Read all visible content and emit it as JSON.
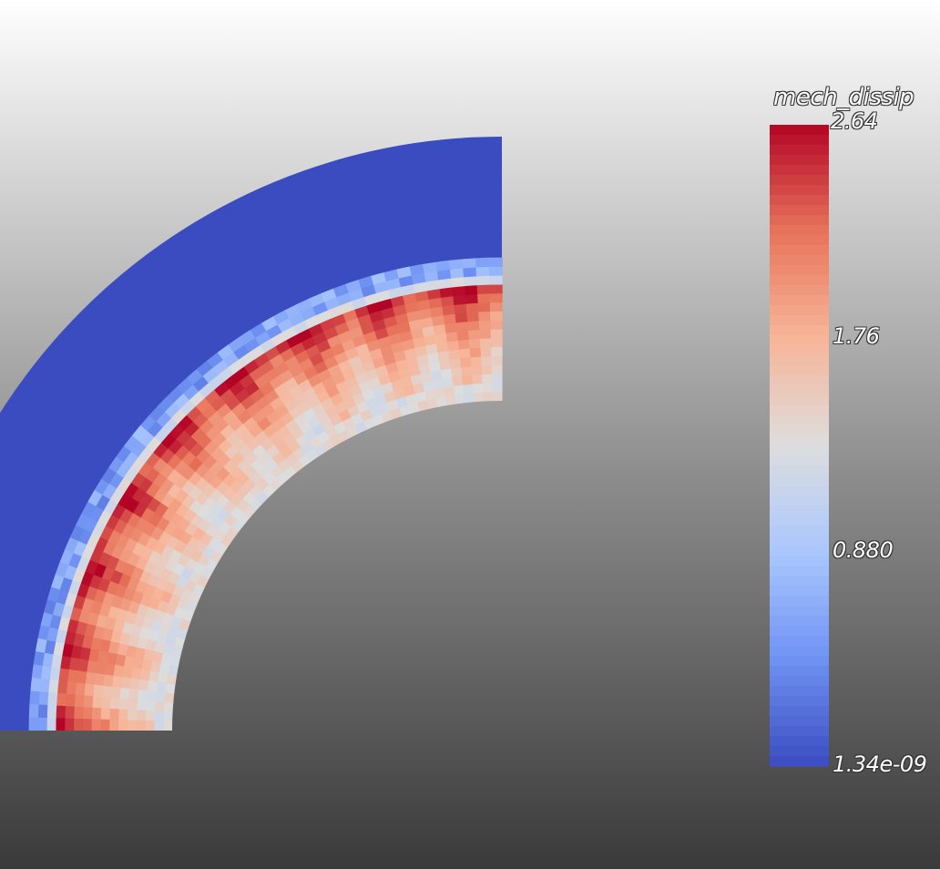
{
  "field_name": "mech_dissip",
  "colorbar": {
    "max_label": "2.64",
    "tick_labels": [
      "1.76",
      "0.880"
    ],
    "min_label": "1.34e-09",
    "range": [
      1.34e-09,
      2.64
    ],
    "colormap": "cool-to-warm",
    "colors": [
      "#3b4cc0",
      "#6f92f3",
      "#aac7fd",
      "#dddddd",
      "#f7b599",
      "#e7745b",
      "#b40426"
    ]
  },
  "background": {
    "top": "#ffffff",
    "bottom": "#3a3a3a"
  }
}
